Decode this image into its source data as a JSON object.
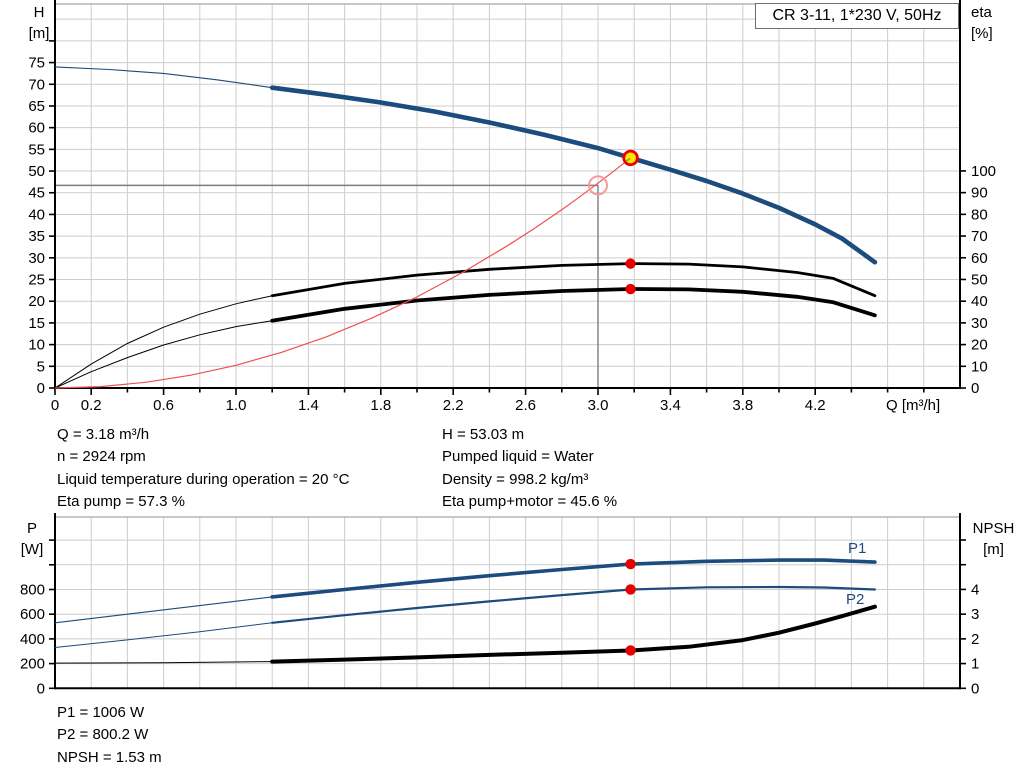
{
  "title_box": {
    "label": "CR 3-11, 1*230 V, 50Hz"
  },
  "axis_titles": {
    "top_left_1": "H",
    "top_left_2": "[m]",
    "top_right_1": "eta",
    "top_right_2": "[%]",
    "x": "Q [m³/h]",
    "bottom_left_1": "P",
    "bottom_left_2": "[W]",
    "bottom_right_1": "NPSH",
    "bottom_right_2": "[m]"
  },
  "series_labels": {
    "p1": "P1",
    "p2": "P2"
  },
  "info_panel": {
    "q": "Q = 3.18 m³/h",
    "n": "n = 2924 rpm",
    "temp": "Liquid temperature during operation = 20 °C",
    "eta_pump": "Eta pump = 57.3 %",
    "h": "H = 53.03 m",
    "liquid": "Pumped liquid = Water",
    "density": "Density = 998.2 kg/m³",
    "eta_pump_motor": "Eta pump+motor = 45.6 %"
  },
  "results_panel": {
    "p1": "P1 = 1006 W",
    "p2": "P2 = 800.2 W",
    "npsh": "NPSH = 1.53 m"
  },
  "colors": {
    "curve_blue": "#1c4b7d",
    "curve_black": "#000000",
    "system_red": "#f05050",
    "dot_red": "#e60000",
    "op_yellow": "#ffe600",
    "grid": "#cdcdcd",
    "crosshair": "#7d7d7d"
  },
  "chart_data": [
    {
      "type": "line",
      "title": "CR 3-11, 1*230 V, 50Hz",
      "x_axis": {
        "label": "Q [m³/h]",
        "range": [
          0,
          5.0
        ],
        "grid_step": 0.2,
        "tick_step": 0.2,
        "tick_max": 4.8,
        "show_ticks": true,
        "labeled_ticks": [
          0,
          0.2,
          0.6,
          1.0,
          1.4,
          1.8,
          2.2,
          2.6,
          3.0,
          3.4,
          3.8,
          4.2
        ]
      },
      "left_axis": {
        "label": "H [m]",
        "range": [
          0,
          88.5
        ],
        "tick_step": 5,
        "tick_max": 80,
        "label_max": 75,
        "grid_step": 5,
        "grid_max": 85
      },
      "right_axis": {
        "label": "eta [%]",
        "range": [
          0,
          176.9
        ],
        "tick_step": 10,
        "tick_max": 100,
        "label_max": 100
      },
      "series": [
        {
          "name": "pump-curve-H",
          "axis": "left",
          "color": "#1c4b7d",
          "width_thin": 1.1,
          "width_thick": 4.6,
          "thick_from": 1.2,
          "points": [
            [
              0,
              74.0
            ],
            [
              0.3,
              73.4
            ],
            [
              0.6,
              72.5
            ],
            [
              0.9,
              71.0
            ],
            [
              1.2,
              69.2
            ],
            [
              1.5,
              67.6
            ],
            [
              1.8,
              65.8
            ],
            [
              2.1,
              63.7
            ],
            [
              2.4,
              61.2
            ],
            [
              2.7,
              58.4
            ],
            [
              3.0,
              55.3
            ],
            [
              3.18,
              53.03
            ],
            [
              3.4,
              50.3
            ],
            [
              3.6,
              47.7
            ],
            [
              3.8,
              44.8
            ],
            [
              4.0,
              41.5
            ],
            [
              4.2,
              37.7
            ],
            [
              4.35,
              34.4
            ],
            [
              4.53,
              29.0
            ]
          ]
        },
        {
          "name": "eta-pump",
          "axis": "right",
          "color": "#000000",
          "width_thin": 1.0,
          "width_thick": 2.8,
          "thick_from": 1.2,
          "points": [
            [
              0,
              0
            ],
            [
              0.2,
              11
            ],
            [
              0.4,
              20.5
            ],
            [
              0.6,
              28
            ],
            [
              0.8,
              34
            ],
            [
              1.0,
              38.8
            ],
            [
              1.2,
              42.5
            ],
            [
              1.6,
              48.2
            ],
            [
              2.0,
              52
            ],
            [
              2.4,
              54.7
            ],
            [
              2.8,
              56.5
            ],
            [
              3.18,
              57.3
            ],
            [
              3.5,
              57.1
            ],
            [
              3.8,
              55.8
            ],
            [
              4.1,
              53.2
            ],
            [
              4.3,
              50.5
            ],
            [
              4.53,
              42.5
            ]
          ]
        },
        {
          "name": "eta-pump-motor",
          "axis": "right",
          "color": "#000000",
          "width_thin": 1.0,
          "width_thick": 3.8,
          "thick_from": 1.2,
          "points": [
            [
              0,
              0
            ],
            [
              0.2,
              7.5
            ],
            [
              0.4,
              14
            ],
            [
              0.6,
              19.8
            ],
            [
              0.8,
              24.5
            ],
            [
              1.0,
              28.3
            ],
            [
              1.2,
              31
            ],
            [
              1.6,
              36.5
            ],
            [
              2.0,
              40.3
            ],
            [
              2.4,
              42.9
            ],
            [
              2.8,
              44.7
            ],
            [
              3.18,
              45.6
            ],
            [
              3.5,
              45.4
            ],
            [
              3.8,
              44.3
            ],
            [
              4.1,
              42
            ],
            [
              4.3,
              39.5
            ],
            [
              4.53,
              33.5
            ]
          ]
        },
        {
          "name": "system-curve",
          "axis": "left",
          "color": "#f05050",
          "width_thin": 1.2,
          "width_thick": 1.2,
          "thick_from": 99,
          "points": [
            [
              0,
              0
            ],
            [
              0.25,
              0.33
            ],
            [
              0.5,
              1.31
            ],
            [
              0.75,
              2.95
            ],
            [
              1.0,
              5.24
            ],
            [
              1.25,
              8.2
            ],
            [
              1.5,
              11.8
            ],
            [
              1.75,
              16.1
            ],
            [
              2.0,
              21.0
            ],
            [
              2.25,
              26.6
            ],
            [
              2.5,
              32.8
            ],
            [
              2.65,
              36.8
            ],
            [
              2.8,
              41.1
            ],
            [
              2.9,
              44.1
            ],
            [
              3.0,
              47.2
            ],
            [
              3.1,
              50.4
            ],
            [
              3.18,
              53.03
            ]
          ]
        }
      ],
      "crosshair": {
        "q": 3.0,
        "h": 46.7
      },
      "markers": [
        {
          "kind": "open_circle",
          "axis": "left",
          "q": 3.0,
          "v": 46.7
        },
        {
          "kind": "operating_point",
          "axis": "left",
          "q": 3.18,
          "v": 53.03
        },
        {
          "kind": "dot",
          "axis": "right",
          "q": 3.18,
          "v": 57.3
        },
        {
          "kind": "dot",
          "axis": "right",
          "q": 3.18,
          "v": 45.6
        }
      ]
    },
    {
      "type": "line",
      "x_axis": {
        "range": [
          0,
          5.0
        ],
        "grid_step": 0.2,
        "tick_step": 0.2,
        "tick_max": 4.8,
        "show_ticks": false,
        "labeled_ticks": []
      },
      "left_axis": {
        "label": "P [W]",
        "range": [
          0,
          1387
        ],
        "tick_step": 200,
        "tick_max": 1200,
        "label_max": 800,
        "grid_step": 200,
        "grid_max": 1200
      },
      "right_axis": {
        "label": "NPSH [m]",
        "range": [
          0,
          6.93
        ],
        "tick_step": 1,
        "tick_max": 6,
        "label_max": 4
      },
      "series": [
        {
          "name": "P1",
          "axis": "left",
          "color": "#1c4b7d",
          "width_thin": 1.1,
          "width_thick": 3.6,
          "thick_from": 1.2,
          "points": [
            [
              0,
              530
            ],
            [
              0.4,
              600
            ],
            [
              0.8,
              670
            ],
            [
              1.2,
              740
            ],
            [
              1.6,
              800
            ],
            [
              2.0,
              858
            ],
            [
              2.4,
              912
            ],
            [
              2.8,
              962
            ],
            [
              3.18,
              1006
            ],
            [
              3.6,
              1028
            ],
            [
              4.0,
              1038
            ],
            [
              4.25,
              1038
            ],
            [
              4.53,
              1022
            ]
          ]
        },
        {
          "name": "P2",
          "axis": "left",
          "color": "#1c4b7d",
          "width_thin": 1.0,
          "width_thick": 2.2,
          "thick_from": 1.2,
          "points": [
            [
              0,
              330
            ],
            [
              0.4,
              392
            ],
            [
              0.8,
              458
            ],
            [
              1.2,
              530
            ],
            [
              1.6,
              592
            ],
            [
              2.0,
              650
            ],
            [
              2.4,
              704
            ],
            [
              2.8,
              755
            ],
            [
              3.18,
              800.2
            ],
            [
              3.6,
              818
            ],
            [
              4.0,
              820
            ],
            [
              4.25,
              816
            ],
            [
              4.53,
              800
            ]
          ]
        },
        {
          "name": "NPSH",
          "axis": "right",
          "color": "#000000",
          "width_thin": 1.0,
          "width_thick": 4.0,
          "thick_from": 1.2,
          "points": [
            [
              0,
              1.02
            ],
            [
              0.6,
              1.03
            ],
            [
              1.2,
              1.08
            ],
            [
              1.6,
              1.16
            ],
            [
              2.0,
              1.25
            ],
            [
              2.4,
              1.35
            ],
            [
              2.8,
              1.44
            ],
            [
              3.18,
              1.53
            ],
            [
              3.5,
              1.68
            ],
            [
              3.8,
              1.95
            ],
            [
              4.0,
              2.25
            ],
            [
              4.2,
              2.62
            ],
            [
              4.35,
              2.92
            ],
            [
              4.53,
              3.3
            ]
          ]
        }
      ],
      "markers": [
        {
          "kind": "dot",
          "axis": "left",
          "q": 3.18,
          "v": 1006
        },
        {
          "kind": "dot",
          "axis": "left",
          "q": 3.18,
          "v": 800.2
        },
        {
          "kind": "dot",
          "axis": "right",
          "q": 3.18,
          "v": 1.53
        }
      ]
    }
  ]
}
